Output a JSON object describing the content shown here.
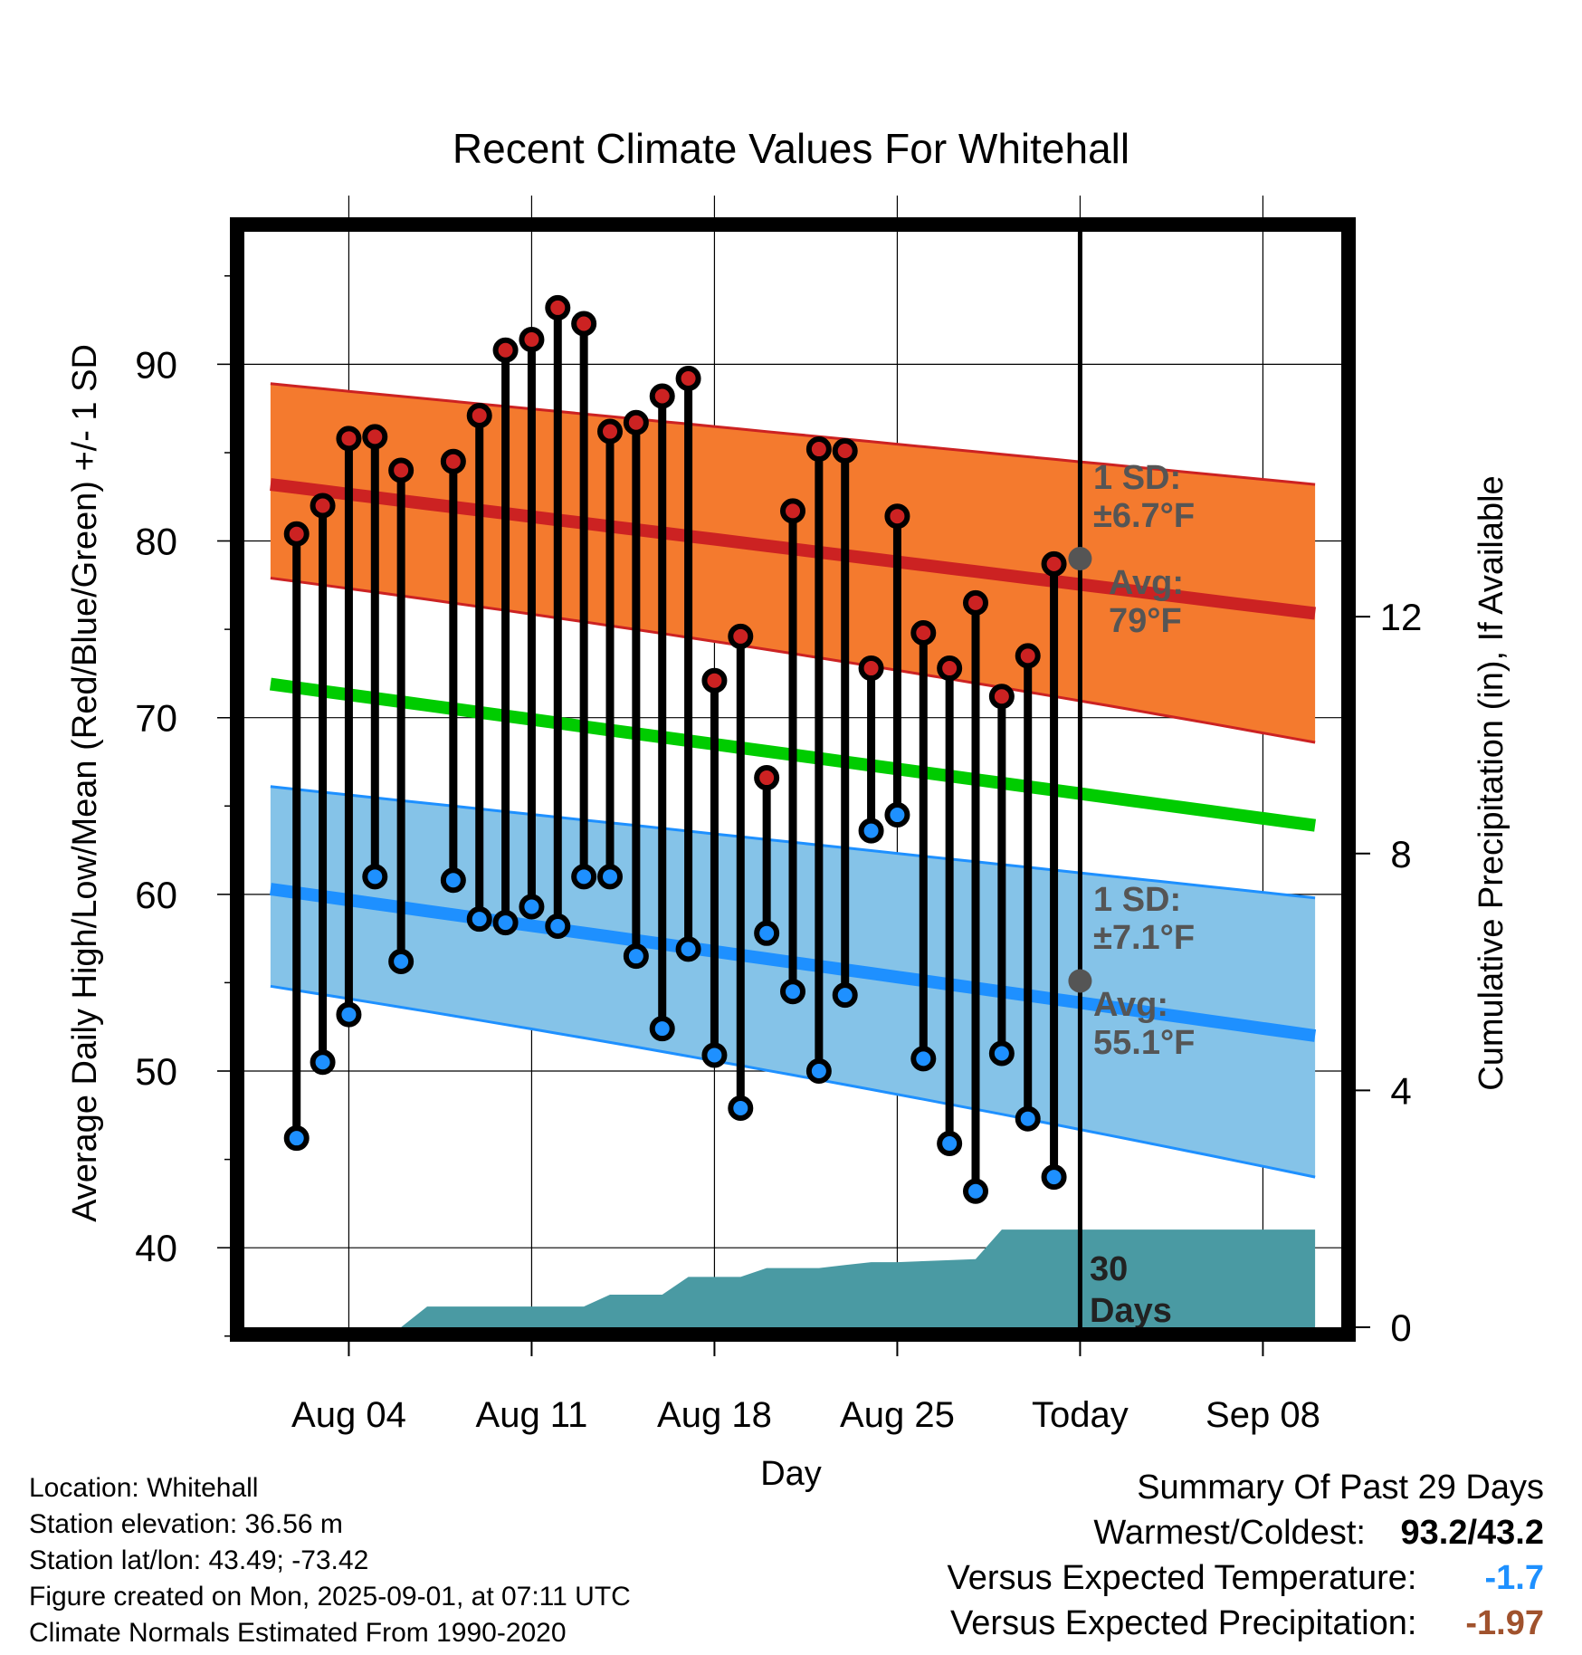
{
  "title": "Recent Climate Values For Whitehall",
  "y_left_label": "Average Daily High/Low/Mean (Red/Blue/Green) +/- 1 SD",
  "y_right_label": "Cumulative Precipitation (in), If Available",
  "x_label": "Day",
  "x_ticks": [
    "Aug 04",
    "Aug 11",
    "Aug 18",
    "Aug 25",
    "Today",
    "Sep 08"
  ],
  "y_left_ticks": [
    "40",
    "50",
    "60",
    "70",
    "80",
    "90"
  ],
  "y_right_ticks": [
    "0",
    "4",
    "8",
    "12"
  ],
  "colors": {
    "high": "#cc2222",
    "high_band": "#f47a2e",
    "low": "#1e90ff",
    "low_band": "#85c3e8",
    "mean": "#00cc00",
    "precip": "#4a9aa3",
    "marker_gray": "#555555",
    "below_expected": "#1e90ff",
    "precip_deficit": "#a0522d"
  },
  "annotations": {
    "high_sd_label": "1 SD:",
    "high_sd_value": "±6.7°F",
    "high_avg_label": "Avg:",
    "high_avg_value": "79°F",
    "low_sd_label": "1 SD:",
    "low_sd_value": "±7.1°F",
    "low_avg_label": "Avg:",
    "low_avg_value": "55.1°F",
    "days_count": "30",
    "days_label": "Days"
  },
  "footer": {
    "location": "Location: Whitehall",
    "elevation": "Station elevation: 36.56 m",
    "latlon": "Station lat/lon: 43.49; -73.42",
    "created": "Figure created on Mon, 2025-09-01, at 07:11 UTC",
    "normals": "Climate Normals Estimated From 1990-2020"
  },
  "summary": {
    "heading": "Summary Of Past 29 Days",
    "warmest_label": "Warmest/Coldest:",
    "warmest_value": "93.2/43.2",
    "temp_label": "Versus Expected Temperature:",
    "temp_value": "-1.7",
    "precip_label": "Versus Expected Precipitation:",
    "precip_value": "-1.97"
  },
  "chart_data": {
    "type": "line",
    "x_dates": [
      "Aug 02",
      "Aug 03",
      "Aug 04",
      "Aug 05",
      "Aug 06",
      "Aug 07",
      "Aug 08",
      "Aug 09",
      "Aug 10",
      "Aug 11",
      "Aug 12",
      "Aug 13",
      "Aug 14",
      "Aug 15",
      "Aug 16",
      "Aug 17",
      "Aug 18",
      "Aug 19",
      "Aug 20",
      "Aug 21",
      "Aug 22",
      "Aug 23",
      "Aug 24",
      "Aug 25",
      "Aug 26",
      "Aug 27",
      "Aug 28",
      "Aug 29",
      "Aug 30",
      "Aug 31"
    ],
    "observed_high": [
      80.4,
      82.0,
      85.8,
      85.9,
      84.0,
      null,
      84.5,
      87.1,
      90.8,
      91.4,
      93.2,
      92.3,
      86.2,
      86.7,
      88.2,
      89.2,
      72.1,
      74.6,
      66.6,
      81.7,
      85.2,
      85.1,
      72.8,
      81.4,
      74.8,
      72.8,
      76.5,
      71.2,
      73.5,
      78.7
    ],
    "observed_low": [
      46.2,
      50.5,
      53.2,
      61.0,
      56.2,
      null,
      60.8,
      58.6,
      58.4,
      59.3,
      58.2,
      61.0,
      61.0,
      56.5,
      52.4,
      56.9,
      50.9,
      47.9,
      57.8,
      54.5,
      50.0,
      54.3,
      63.6,
      64.5,
      50.7,
      45.9,
      43.2,
      51.0,
      47.3,
      44.0
    ],
    "normal_dates": [
      "Aug 01",
      "Sep 10"
    ],
    "normal_high_start_end": [
      83.2,
      75.9
    ],
    "normal_high_upper_start_end": [
      88.9,
      83.2
    ],
    "normal_high_lower_start_end": [
      77.9,
      70.1
    ],
    "normal_mean_start_end": [
      71.9,
      63.9
    ],
    "normal_low_start_end": [
      60.3,
      52.0
    ],
    "normal_low_upper_start_end": [
      66.1,
      59.8
    ],
    "normal_low_lower_start_end": [
      54.8,
      45.5
    ],
    "today_normal_high": 79.0,
    "today_normal_low": 55.1,
    "cumulative_precip_dates": [
      "Aug 01",
      "Aug 06",
      "Aug 07",
      "Aug 13",
      "Aug 14",
      "Aug 16",
      "Aug 17",
      "Aug 19",
      "Aug 20",
      "Aug 22",
      "Aug 23",
      "Aug 24",
      "Aug 25",
      "Aug 28",
      "Aug 29",
      "Sep 10"
    ],
    "cumulative_precip": [
      0.0,
      0.0,
      0.35,
      0.35,
      0.55,
      0.55,
      0.85,
      0.85,
      1.0,
      1.0,
      1.05,
      1.1,
      1.1,
      1.15,
      1.65,
      1.65
    ],
    "y_left_range": [
      35.5,
      97.5
    ],
    "y_right_range": [
      0,
      18.5
    ],
    "x_range": [
      "Jul 31",
      "Sep 11"
    ],
    "grid": true
  }
}
